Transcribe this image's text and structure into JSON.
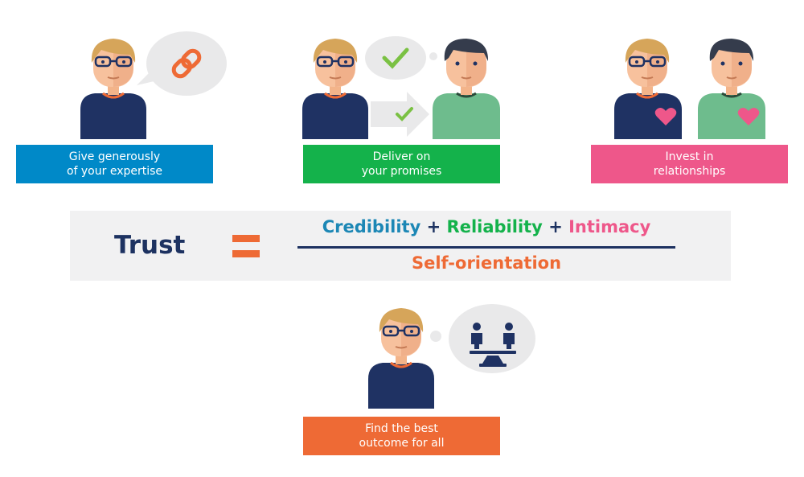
{
  "panels": [
    {
      "caption": [
        "Give generously",
        "of your expertise"
      ],
      "color": "#0089c8"
    },
    {
      "caption": [
        "Deliver on",
        "your promises"
      ],
      "color": "#14b24b"
    },
    {
      "caption": [
        "Invest in",
        "relationships"
      ],
      "color": "#ee578a"
    },
    {
      "caption": [
        "Find the best",
        "outcome for all"
      ],
      "color": "#ee6a35"
    }
  ],
  "formula": {
    "lhs": "Trust",
    "terms": [
      {
        "text": "Credibility",
        "color": "#1c87b5"
      },
      {
        "text": "Reliability",
        "color": "#14b24b"
      },
      {
        "text": "Intimacy",
        "color": "#ee578a"
      }
    ],
    "plus": "+",
    "denominator": "Self-orientation",
    "denominator_color": "#ee6a35",
    "trust_color": "#1d3261"
  },
  "icons": [
    "link-icon",
    "checkmark-icon",
    "arrow-check-icon",
    "heart-icon",
    "balance-scale-people-icon"
  ]
}
